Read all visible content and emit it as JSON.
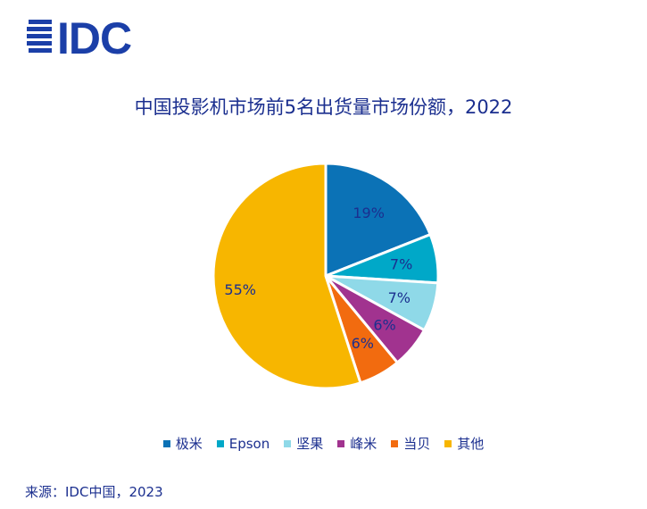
{
  "logo": {
    "text": "IDC",
    "color": "#1b3fa8"
  },
  "chart_data": {
    "type": "pie",
    "title": "中国投影机市场前5名出货量市场份额，2022",
    "slices": [
      {
        "name": "极米",
        "value": 19,
        "label": "19%",
        "color": "#0b72b6"
      },
      {
        "name": "Epson",
        "value": 7,
        "label": "7%",
        "color": "#00a8c8"
      },
      {
        "name": "坚果",
        "value": 7,
        "label": "7%",
        "color": "#8fd9e8"
      },
      {
        "name": "峰米",
        "value": 6,
        "label": "6%",
        "color": "#a1338f"
      },
      {
        "name": "当贝",
        "value": 6,
        "label": "6%",
        "color": "#f26b0f"
      },
      {
        "name": "其他",
        "value": 55,
        "label": "55%",
        "color": "#f7b600"
      }
    ],
    "start_direction": "12 o'clock, clockwise",
    "legend_position": "bottom"
  },
  "source": "来源：IDC中国，2023"
}
